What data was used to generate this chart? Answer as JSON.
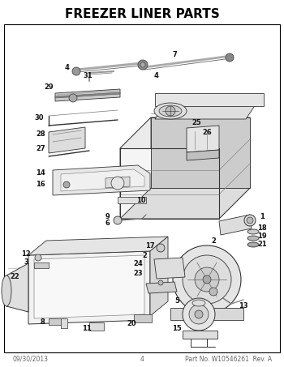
{
  "title": "FREEZER LINER PARTS",
  "title_fontsize": 11,
  "title_fontweight": "bold",
  "footer_left": "09/30/2013",
  "footer_center": "4",
  "footer_right": "Part No. W10546261  Rev. A",
  "footer_fontsize": 5.5,
  "bg_color": "#ffffff",
  "fig_width": 3.5,
  "fig_height": 4.53,
  "dpi": 100,
  "lc": "#333333",
  "lw": 0.65
}
